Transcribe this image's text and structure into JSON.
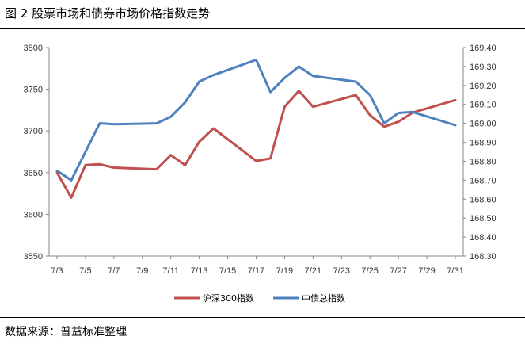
{
  "figure": {
    "title": "图 2  股票市场和债券市场价格指数走势",
    "source": "数据来源：普益标准整理"
  },
  "colors": {
    "series1": "#C0504D",
    "series2": "#4F81BD",
    "axis": "#868686"
  },
  "chart_data": {
    "type": "line",
    "title": "",
    "xlabel": "",
    "ylabel_left": "",
    "ylabel_right": "",
    "grid": false,
    "legend_position": "bottom",
    "y_left_lim": [
      3550,
      3800
    ],
    "y_left_ticks": [
      "3550",
      "3600",
      "3650",
      "3700",
      "3750",
      "3800"
    ],
    "y_right_lim": [
      168.3,
      169.4
    ],
    "y_right_ticks": [
      "168.30",
      "168.40",
      "168.50",
      "168.60",
      "168.70",
      "168.80",
      "168.90",
      "169.00",
      "169.10",
      "169.20",
      "169.30",
      "169.40"
    ],
    "x_tick_labels": [
      "7/3",
      "7/5",
      "7/7",
      "7/9",
      "7/11",
      "7/13",
      "7/15",
      "7/17",
      "7/19",
      "7/21",
      "7/23",
      "7/25",
      "7/27",
      "7/29",
      "7/31"
    ],
    "series": [
      {
        "name": "沪深300指数",
        "axis": "left",
        "points": [
          {
            "x": "7/3",
            "y": 3650
          },
          {
            "x": "7/4",
            "y": 3620
          },
          {
            "x": "7/5",
            "y": 3659
          },
          {
            "x": "7/6",
            "y": 3660
          },
          {
            "x": "7/7",
            "y": 3656
          },
          {
            "x": "7/10",
            "y": 3654
          },
          {
            "x": "7/11",
            "y": 3671
          },
          {
            "x": "7/12",
            "y": 3659
          },
          {
            "x": "7/13",
            "y": 3687
          },
          {
            "x": "7/14",
            "y": 3703
          },
          {
            "x": "7/17",
            "y": 3664
          },
          {
            "x": "7/18",
            "y": 3667
          },
          {
            "x": "7/19",
            "y": 3729
          },
          {
            "x": "7/20",
            "y": 3748
          },
          {
            "x": "7/21",
            "y": 3729
          },
          {
            "x": "7/24",
            "y": 3743
          },
          {
            "x": "7/25",
            "y": 3719
          },
          {
            "x": "7/26",
            "y": 3705
          },
          {
            "x": "7/27",
            "y": 3711
          },
          {
            "x": "7/28",
            "y": 3722
          },
          {
            "x": "7/31",
            "y": 3737
          }
        ]
      },
      {
        "name": "中债总指数",
        "axis": "right",
        "points": [
          {
            "x": "7/3",
            "y": 168.75
          },
          {
            "x": "7/4",
            "y": 168.7
          },
          {
            "x": "7/6",
            "y": 169.0
          },
          {
            "x": "7/7",
            "y": 168.995
          },
          {
            "x": "7/10",
            "y": 169.0
          },
          {
            "x": "7/11",
            "y": 169.035
          },
          {
            "x": "7/12",
            "y": 169.11
          },
          {
            "x": "7/13",
            "y": 169.22
          },
          {
            "x": "7/14",
            "y": 169.255
          },
          {
            "x": "7/17",
            "y": 169.335
          },
          {
            "x": "7/18",
            "y": 169.165
          },
          {
            "x": "7/19",
            "y": 169.24
          },
          {
            "x": "7/20",
            "y": 169.3
          },
          {
            "x": "7/21",
            "y": 169.25
          },
          {
            "x": "7/24",
            "y": 169.22
          },
          {
            "x": "7/25",
            "y": 169.15
          },
          {
            "x": "7/26",
            "y": 169.0
          },
          {
            "x": "7/27",
            "y": 169.055
          },
          {
            "x": "7/28",
            "y": 169.06
          },
          {
            "x": "7/31",
            "y": 168.99
          }
        ]
      }
    ]
  }
}
